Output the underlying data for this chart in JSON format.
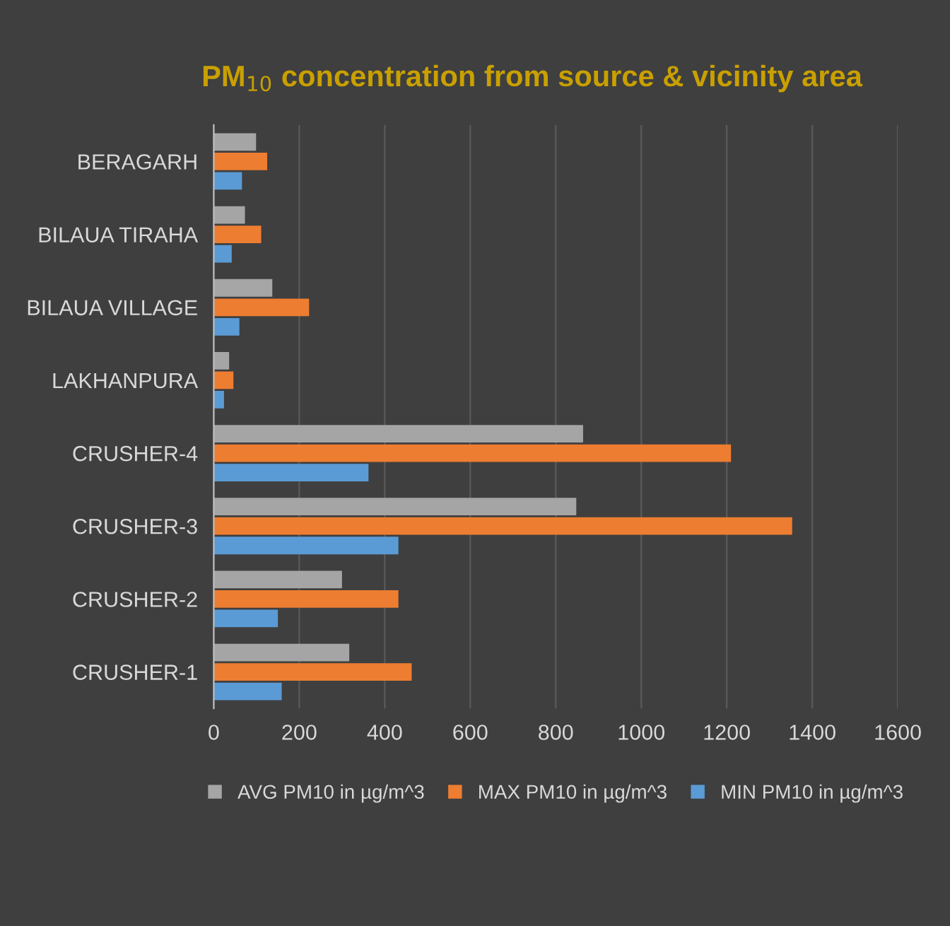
{
  "chart_data": {
    "type": "bar",
    "orientation": "horizontal",
    "title": "PM$_{10}$ concentration from source & vicinity area",
    "categories": [
      "BERAGARH",
      "BILAUA TIRAHA",
      "BILAUA VILLAGE",
      "LAKHANPURA",
      "CRUSHER-4",
      "CRUSHER-3",
      "CRUSHER-2",
      "CRUSHER-1"
    ],
    "series": [
      {
        "name": "AVG PM10 in µg/m^3",
        "color": "#a5a5a5",
        "values": [
          99,
          73,
          137,
          36,
          864,
          848,
          300,
          317
        ]
      },
      {
        "name": "MAX PM10 in µg/m^3",
        "color": "#ed7d31",
        "values": [
          125,
          111,
          223,
          46,
          1210,
          1353,
          432,
          463
        ]
      },
      {
        "name": "MIN PM10 in µg/m^3",
        "color": "#5b9bd5",
        "values": [
          66,
          42,
          60,
          24,
          362,
          432,
          150,
          159
        ]
      }
    ],
    "xlim": [
      0,
      1600
    ],
    "xticks": [
      0,
      200,
      400,
      600,
      800,
      1000,
      1200,
      1400,
      1600
    ],
    "grid": "x",
    "legend": "bottom"
  }
}
